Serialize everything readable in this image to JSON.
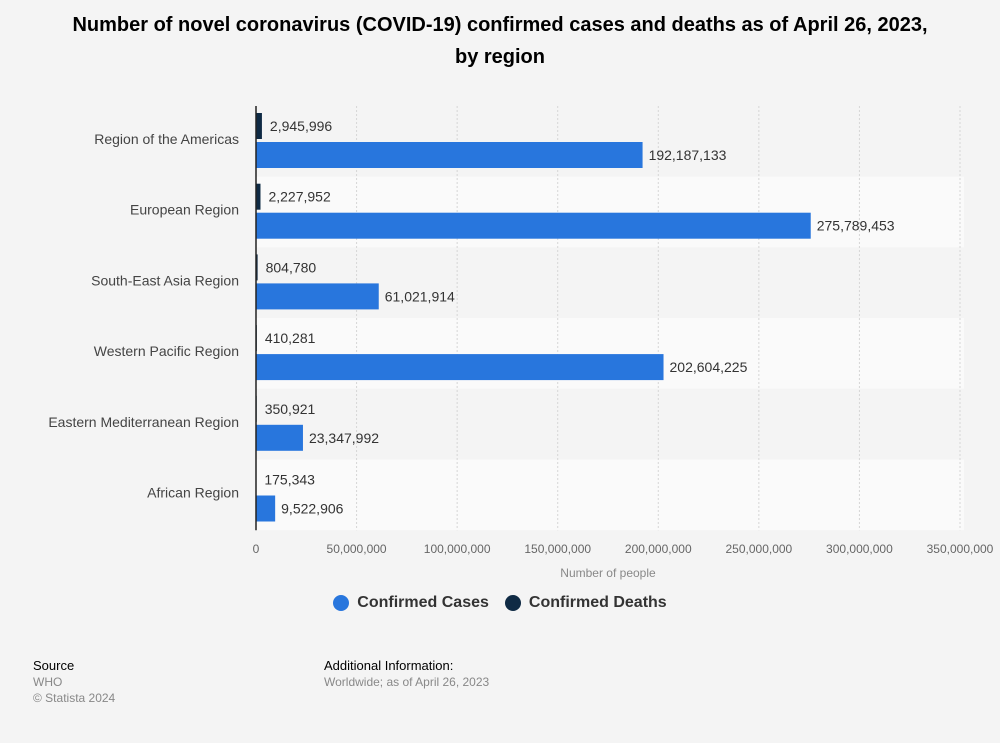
{
  "chart_data": {
    "type": "bar",
    "orientation": "horizontal",
    "title": "Number of novel coronavirus (COVID-19) confirmed cases and deaths as of April 26, 2023, by region",
    "categories": [
      "Region of the Americas",
      "European Region",
      "South-East Asia Region",
      "Western Pacific Region",
      "Eastern Mediterranean Region",
      "African Region"
    ],
    "series": [
      {
        "name": "Confirmed Deaths",
        "color": "#0f2a44",
        "values": [
          2945996,
          2227952,
          804780,
          410281,
          350921,
          175343
        ],
        "labels": [
          "2,945,996",
          "2,227,952",
          "804,780",
          "410,281",
          "350,921",
          "175,343"
        ]
      },
      {
        "name": "Confirmed Cases",
        "color": "#2876dd",
        "values": [
          192187133,
          275789453,
          61021914,
          202604225,
          23347992,
          9522906
        ],
        "labels": [
          "192,187,133",
          "275,789,453",
          "61,021,914",
          "202,604,225",
          "23,347,992",
          "9,522,906"
        ]
      }
    ],
    "xlabel": "Number of people",
    "ylabel": "",
    "xlim": [
      0,
      350000000
    ],
    "xticks": [
      0,
      50000000,
      100000000,
      150000000,
      200000000,
      250000000,
      300000000,
      350000000
    ],
    "xtick_labels": [
      "0",
      "50,000,000",
      "100,000,000",
      "150,000,000",
      "200,000,000",
      "250,000,000",
      "300,000,000",
      "350,000,000"
    ],
    "grid": true,
    "legend_position": "bottom",
    "legend": [
      {
        "name": "Confirmed Cases",
        "color": "#2876dd"
      },
      {
        "name": "Confirmed Deaths",
        "color": "#0f2a44"
      }
    ]
  },
  "footer": {
    "source_heading": "Source",
    "source_value": "WHO",
    "copyright": "© Statista 2024",
    "additional_heading": "Additional Information:",
    "additional_value": "Worldwide; as of April 26, 2023"
  }
}
